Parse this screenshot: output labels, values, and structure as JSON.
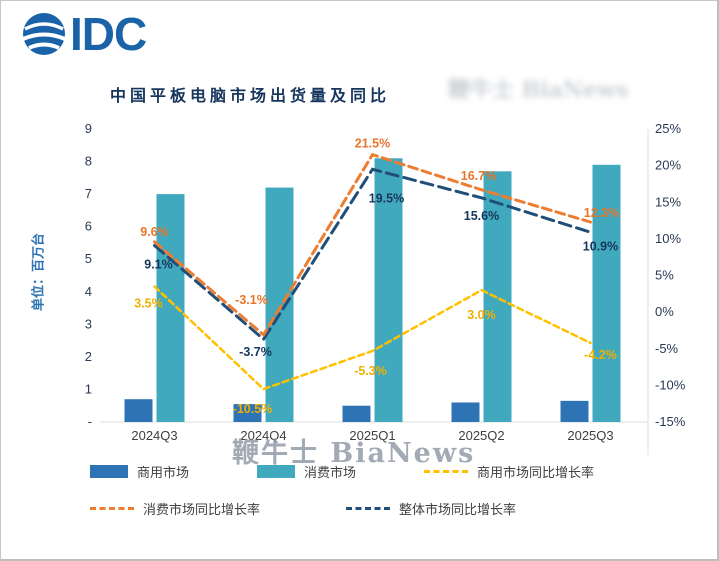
{
  "logo": {
    "text": "IDC"
  },
  "watermark": "鞭牛士 BiaNews",
  "chart_data": {
    "type": "combo-bar-line",
    "title": "中国平板电脑市场出货量及同比",
    "ylabel": "单位：百万台",
    "categories": [
      "2024Q3",
      "2024Q4",
      "2025Q1",
      "2025Q2",
      "2025Q3"
    ],
    "left_axis": {
      "min": 0,
      "max": 9,
      "ticks": [
        "9",
        "8",
        "7",
        "6",
        "5",
        "4",
        "3",
        "2",
        "1",
        "-"
      ]
    },
    "right_axis": {
      "min": -15,
      "max": 25,
      "ticks": [
        "25%",
        "20%",
        "15%",
        "10%",
        "5%",
        "0%",
        "-5%",
        "-10%",
        "-15%"
      ]
    },
    "bar_series": [
      {
        "name": "商用市场",
        "color": "#2E74B5",
        "values": [
          0.7,
          0.55,
          0.5,
          0.6,
          0.65
        ]
      },
      {
        "name": "消费市场",
        "color": "#41A9BD",
        "values": [
          7.0,
          7.2,
          8.1,
          7.7,
          7.9
        ]
      }
    ],
    "line_series": [
      {
        "name": "商用市场同比增长率",
        "color": "#FFC000",
        "label_color": "#EFB000",
        "values": [
          3.5,
          -10.5,
          -5.3,
          3.0,
          -4.2
        ],
        "labels": [
          "3.5%",
          "-10.5%",
          "-5.3%",
          "3.0%",
          "-4.2%"
        ]
      },
      {
        "name": "消费市场同比增长率",
        "color": "#ED7D31",
        "label_color": "#E8752A",
        "values": [
          9.6,
          -3.1,
          21.5,
          16.7,
          12.3
        ],
        "labels": [
          "9.6%",
          "-3.1%",
          "21.5%",
          "16.7%",
          "12.3%"
        ]
      },
      {
        "name": "整体市场同比增长率",
        "color": "#1F4E79",
        "label_color": "#17365D",
        "values": [
          9.1,
          -3.7,
          19.5,
          15.6,
          10.9
        ],
        "labels": [
          "9.1%",
          "-3.7%",
          "19.5%",
          "15.6%",
          "10.9%"
        ]
      }
    ],
    "legend_position": "bottom",
    "grid": false
  },
  "legend": {
    "items": [
      {
        "type": "bar",
        "color": "#2E74B5",
        "label": "商用市场"
      },
      {
        "type": "bar",
        "color": "#41A9BD",
        "label": "消费市场"
      },
      {
        "type": "line",
        "color": "#FFC000",
        "label": "商用市场同比增长率"
      },
      {
        "type": "line",
        "color": "#ED7D31",
        "label": "消费市场同比增长率"
      },
      {
        "type": "line",
        "color": "#1F4E79",
        "label": "整体市场同比增长率"
      }
    ]
  }
}
